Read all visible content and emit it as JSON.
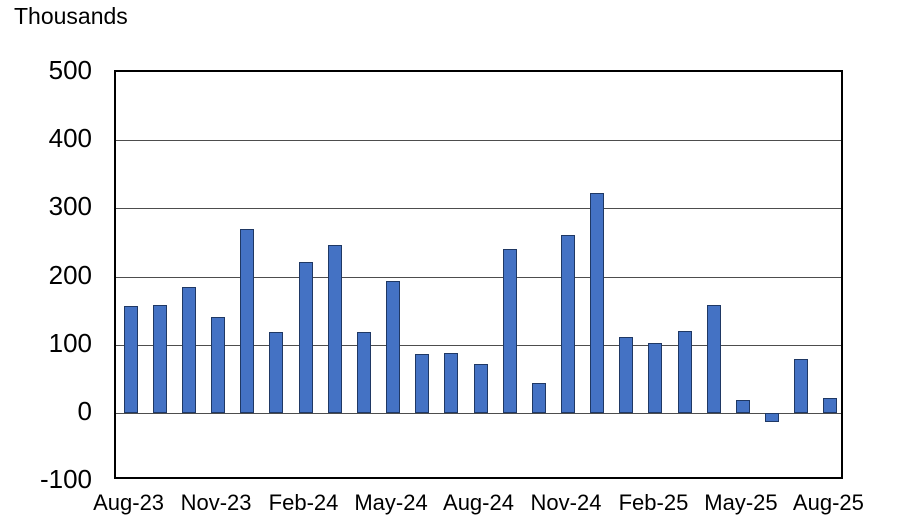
{
  "chart_data": {
    "type": "bar",
    "title": "Thousands",
    "categories": [
      "Aug-23",
      "Sep-23",
      "Oct-23",
      "Nov-23",
      "Dec-23",
      "Jan-24",
      "Feb-24",
      "Mar-24",
      "Apr-24",
      "May-24",
      "Jun-24",
      "Jul-24",
      "Aug-24",
      "Sep-24",
      "Oct-24",
      "Nov-24",
      "Dec-24",
      "Jan-25",
      "Feb-25",
      "Mar-25",
      "Apr-25",
      "May-25",
      "Jun-25",
      "Jul-25",
      "Aug-25"
    ],
    "values": [
      157,
      158,
      184,
      141,
      269,
      119,
      222,
      246,
      118,
      193,
      87,
      88,
      71,
      240,
      44,
      261,
      323,
      111,
      102,
      120,
      158,
      19,
      -13,
      79,
      22
    ],
    "x_tick_labels": [
      "Aug-23",
      "Nov-23",
      "Feb-24",
      "May-24",
      "Aug-24",
      "Nov-24",
      "Feb-25",
      "May-25",
      "Aug-25"
    ],
    "x_tick_every": 3,
    "y_tick_labels": [
      "500",
      "400",
      "300",
      "200",
      "100",
      "0",
      "-100"
    ],
    "ylim": [
      -100,
      500
    ],
    "grid": true,
    "legend": "none",
    "colors": {
      "bar_fill": "#4472C4",
      "bar_border": "#1F3864",
      "gridline": "#4d4d4d",
      "plot_border": "#000000",
      "text": "#000000",
      "background": "#FFFFFF"
    }
  }
}
